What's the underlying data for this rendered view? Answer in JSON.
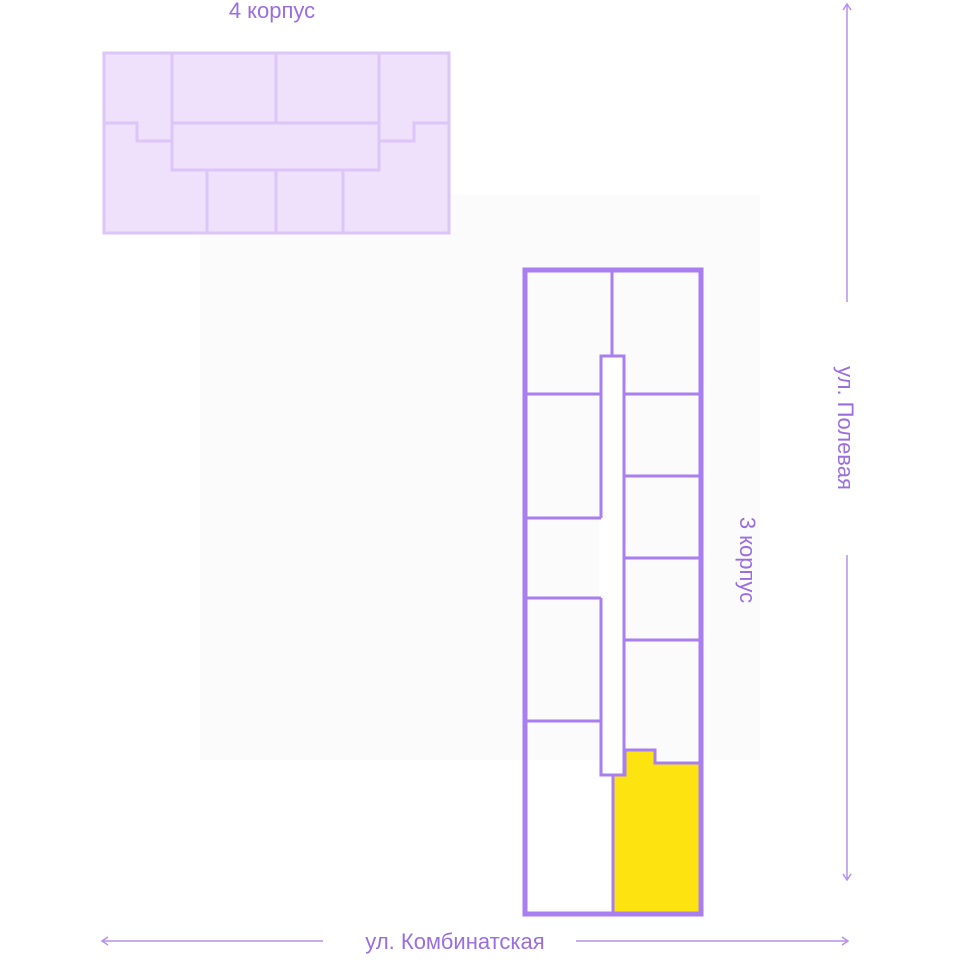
{
  "buildings": {
    "building_4": {
      "label": "4 корпус"
    },
    "building_3": {
      "label": "3 корпус",
      "highlighted_unit": "selected-apartment"
    }
  },
  "streets": {
    "right": "ул. Полевая",
    "bottom": "ул. Комбинатская"
  },
  "colors": {
    "outline": "#a97ef0",
    "text": "#9a6ee0",
    "building_4_fill": "#efe0fc",
    "building_4_stroke": "#dcc5f7",
    "highlight": "#fde410",
    "arrow": "#b690ec"
  }
}
